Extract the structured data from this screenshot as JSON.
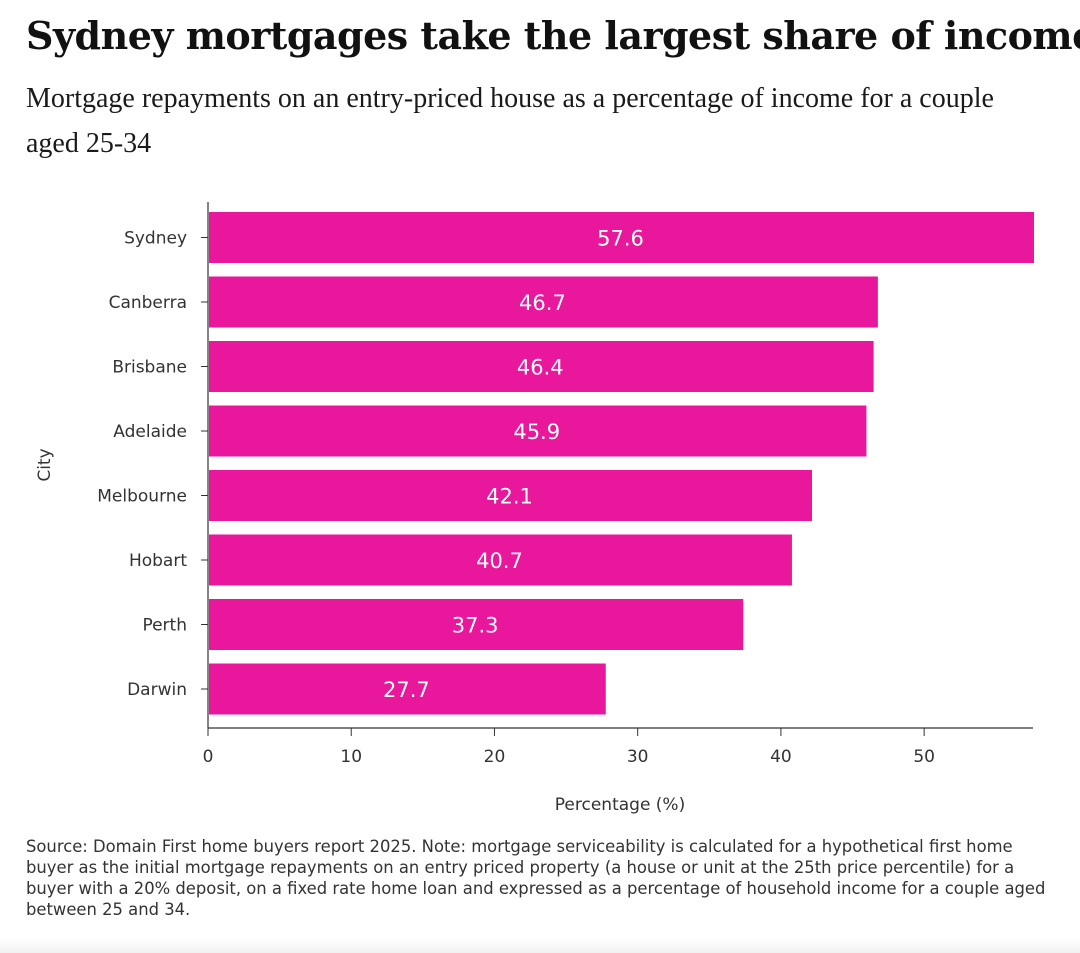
{
  "header": {
    "title": "Sydney mortgages take the largest share of income",
    "subtitle": "Mortgage repayments on an entry-priced house as a percentage of income for a couple aged 25-34"
  },
  "footer": {
    "source": "Source: Domain First home buyers report 2025. Note: mortgage serviceability is calculated for a hypothetical first home buyer as the initial mortgage repayments on an entry priced property (a house or unit at the 25th price percentile) for a buyer with a 20% deposit, on a fixed rate home loan and expressed as a percentage of household income for a couple aged between 25 and 34."
  },
  "chart_data": {
    "type": "bar",
    "orientation": "horizontal",
    "title": "Sydney mortgages take the largest share of income",
    "xlabel": "Percentage (%)",
    "ylabel": "City",
    "categories": [
      "Sydney",
      "Canberra",
      "Brisbane",
      "Adelaide",
      "Melbourne",
      "Hobart",
      "Perth",
      "Darwin"
    ],
    "values": [
      57.6,
      46.7,
      46.4,
      45.9,
      42.1,
      40.7,
      37.3,
      27.7
    ],
    "value_labels": [
      "57.6",
      "46.7",
      "46.4",
      "45.9",
      "42.1",
      "40.7",
      "37.3",
      "27.7"
    ],
    "xticks": [
      0,
      10,
      20,
      30,
      40,
      50
    ],
    "xtick_labels": [
      "0",
      "10",
      "20",
      "30",
      "40",
      "50"
    ],
    "xlim": [
      0,
      57.6
    ],
    "bar_color": "#e8179c",
    "grid": false
  }
}
